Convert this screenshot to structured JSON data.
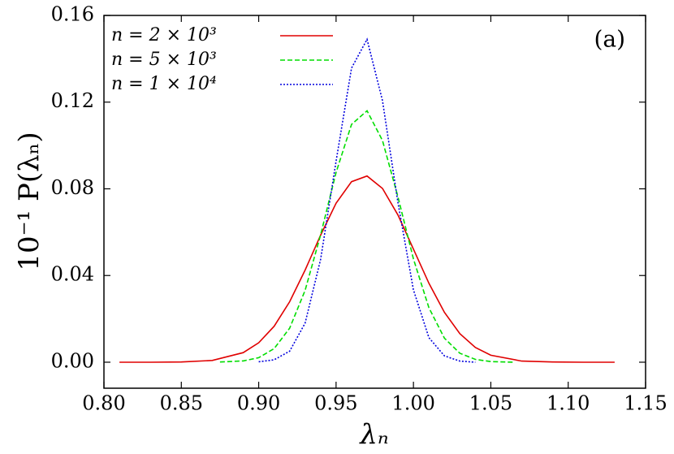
{
  "chart_data": {
    "type": "line",
    "annotation": "(a)",
    "x_label": "λₙ",
    "y_label": "10⁻¹ P(λₙ)",
    "xlim": [
      0.8,
      1.15
    ],
    "ylim": [
      -0.012,
      0.16
    ],
    "xticks": [
      {
        "value": 0.8,
        "label": "0.80"
      },
      {
        "value": 0.85,
        "label": "0.85"
      },
      {
        "value": 0.9,
        "label": "0.90"
      },
      {
        "value": 0.95,
        "label": "0.95"
      },
      {
        "value": 1.0,
        "label": "1.00"
      },
      {
        "value": 1.05,
        "label": "1.05"
      },
      {
        "value": 1.1,
        "label": "1.10"
      },
      {
        "value": 1.15,
        "label": "1.15"
      }
    ],
    "yticks": [
      {
        "value": 0.0,
        "label": "0.00"
      },
      {
        "value": 0.04,
        "label": "0.04"
      },
      {
        "value": 0.08,
        "label": "0.08"
      },
      {
        "value": 0.12,
        "label": "0.12"
      },
      {
        "value": 0.16,
        "label": "0.16"
      }
    ],
    "legend": "upper left",
    "series": [
      {
        "name": "n = 2 × 10³",
        "color": "#e00000",
        "dash": "none",
        "x": [
          0.81,
          0.83,
          0.85,
          0.87,
          0.89,
          0.9,
          0.91,
          0.92,
          0.93,
          0.94,
          0.95,
          0.96,
          0.97,
          0.98,
          0.99,
          1.0,
          1.01,
          1.02,
          1.03,
          1.04,
          1.05,
          1.07,
          1.09,
          1.11,
          1.13
        ],
        "values": [
          0.0,
          0.0,
          0.0001,
          0.0008,
          0.0044,
          0.009,
          0.0166,
          0.0279,
          0.0425,
          0.0586,
          0.0734,
          0.0833,
          0.0859,
          0.0802,
          0.0679,
          0.0522,
          0.0364,
          0.023,
          0.0132,
          0.0068,
          0.0032,
          0.0005,
          0.0001,
          0.0,
          0.0
        ]
      },
      {
        "name": "n = 5 × 10³",
        "color": "#00dd00",
        "dash": "6,3",
        "x": [
          0.875,
          0.89,
          0.9,
          0.91,
          0.92,
          0.93,
          0.94,
          0.95,
          0.96,
          0.97,
          0.98,
          0.99,
          1.0,
          1.01,
          1.02,
          1.03,
          1.04,
          1.05,
          1.065
        ],
        "values": [
          0.0001,
          0.0006,
          0.0021,
          0.0063,
          0.0157,
          0.0331,
          0.0587,
          0.0876,
          0.1097,
          0.116,
          0.1023,
          0.0762,
          0.0477,
          0.0251,
          0.0111,
          0.0041,
          0.0013,
          0.0003,
          0.0
        ]
      },
      {
        "name": "n = 1 × 10⁴",
        "color": "#0000dd",
        "dash": "2,2",
        "x": [
          0.9,
          0.91,
          0.92,
          0.93,
          0.94,
          0.95,
          0.96,
          0.97,
          0.98,
          0.99,
          1.0,
          1.01,
          1.02,
          1.03,
          1.04
        ],
        "values": [
          0.0002,
          0.0011,
          0.0051,
          0.018,
          0.0474,
          0.0928,
          0.1357,
          0.149,
          0.1207,
          0.0735,
          0.0334,
          0.0113,
          0.0029,
          0.0005,
          0.0
        ]
      }
    ]
  }
}
